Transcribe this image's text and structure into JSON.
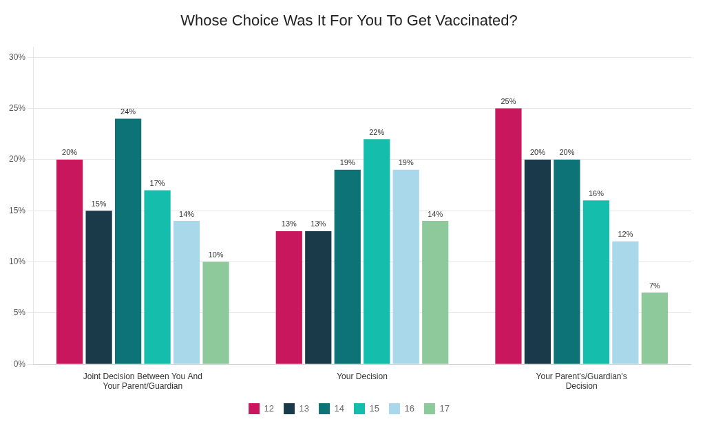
{
  "chart_data": {
    "type": "bar",
    "title": "Whose Choice Was It For You To Get Vaccinated?",
    "categories": [
      "Joint Decision Between You And\nYour Parent/Guardian",
      "Your Decision",
      "Your Parent's/Guardian's\nDecision"
    ],
    "series": [
      {
        "name": "12",
        "color": "#C8175D",
        "values": [
          20,
          13,
          25
        ],
        "value_labels": [
          "20%",
          "13%",
          "25%"
        ]
      },
      {
        "name": "13",
        "color": "#1A3A4A",
        "values": [
          15,
          13,
          20
        ],
        "value_labels": [
          "15%",
          "13%",
          "20%"
        ]
      },
      {
        "name": "14",
        "color": "#0D7377",
        "values": [
          24,
          19,
          20
        ],
        "value_labels": [
          "24%",
          "19%",
          "20%"
        ]
      },
      {
        "name": "15",
        "color": "#14BDAC",
        "values": [
          17,
          22,
          16
        ],
        "value_labels": [
          "17%",
          "22%",
          "16%"
        ]
      },
      {
        "name": "16",
        "color": "#A8D8EA",
        "values": [
          14,
          19,
          12
        ],
        "value_labels": [
          "14%",
          "19%",
          "12%"
        ]
      },
      {
        "name": "17",
        "color": "#8DC99A",
        "values": [
          10,
          14,
          7
        ],
        "value_labels": [
          "10%",
          "14%",
          "7%"
        ]
      }
    ],
    "ylim": [
      0,
      31
    ],
    "yticks": [
      {
        "value": 0,
        "label": "0%"
      },
      {
        "value": 5,
        "label": "5%"
      },
      {
        "value": 10,
        "label": "10%"
      },
      {
        "value": 15,
        "label": "15%"
      },
      {
        "value": 20,
        "label": "20%"
      },
      {
        "value": 25,
        "label": "25%"
      },
      {
        "value": 30,
        "label": "30%"
      }
    ],
    "grid": true,
    "legend": "bottom",
    "data_labels": true
  }
}
